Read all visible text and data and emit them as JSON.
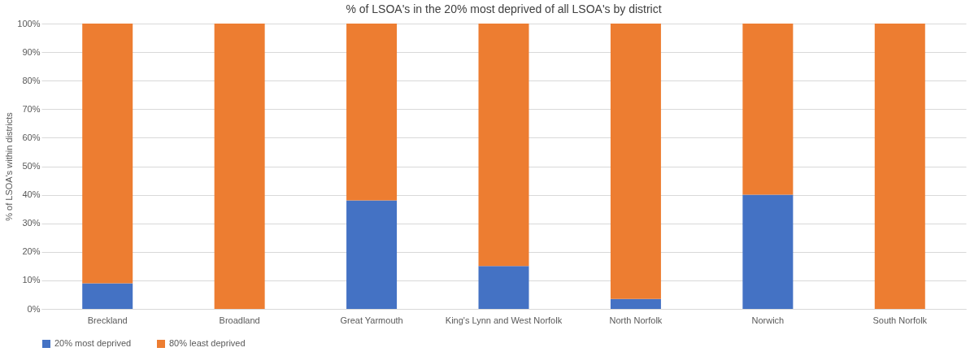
{
  "chart_data": {
    "type": "bar",
    "stacked": true,
    "title": "% of LSOA's in the 20% most deprived of all LSOA's by district",
    "ylabel": "% of LSOA's within districts",
    "categories": [
      "Breckland",
      "Broadland",
      "Great Yarmouth",
      "King's Lynn and West Norfolk",
      "North Norfolk",
      "Norwich",
      "South Norfolk"
    ],
    "series": [
      {
        "name": "20% most deprived",
        "color": "#4472c4",
        "values": [
          9,
          0,
          38,
          15,
          3.5,
          40,
          0
        ]
      },
      {
        "name": "80% least deprived",
        "color": "#ed7d31",
        "values": [
          91,
          100,
          62,
          85,
          96.5,
          60,
          100
        ]
      }
    ],
    "ylim": [
      0,
      100
    ],
    "yticks": [
      {
        "value": 0,
        "label": "0%"
      },
      {
        "value": 10,
        "label": "10%"
      },
      {
        "value": 20,
        "label": "20%"
      },
      {
        "value": 30,
        "label": "30%"
      },
      {
        "value": 40,
        "label": "40%"
      },
      {
        "value": 50,
        "label": "50%"
      },
      {
        "value": 60,
        "label": "60%"
      },
      {
        "value": 70,
        "label": "70%"
      },
      {
        "value": 80,
        "label": "80%"
      },
      {
        "value": 90,
        "label": "90%"
      },
      {
        "value": 100,
        "label": "100%"
      }
    ],
    "grid": "y",
    "legend": "bottom"
  }
}
